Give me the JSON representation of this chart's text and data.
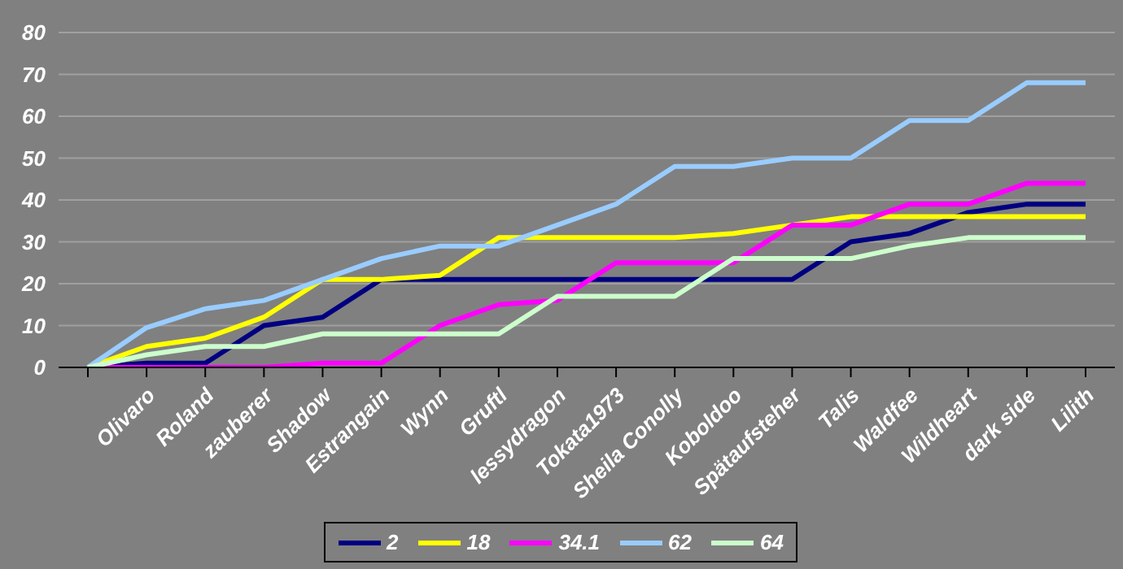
{
  "chart_data": {
    "type": "line",
    "categories": [
      null,
      "Olivaro",
      "Roland",
      "zauberer",
      "Shadow",
      "Estrangain",
      "Wynn",
      "Gruftl",
      "lessydragon",
      "Tokata1973",
      "Sheila Conolly",
      "Koboldoo",
      "Spätaufsteher",
      "Talis",
      "Waldfee",
      "Wildheart",
      "dark side",
      "Lilith"
    ],
    "series": [
      {
        "name": "2",
        "color": "#000080",
        "values": [
          0,
          1,
          1,
          10,
          12,
          21,
          21,
          21,
          21,
          21,
          21,
          21,
          21,
          30,
          32,
          37,
          39,
          39
        ]
      },
      {
        "name": "18",
        "color": "#ffff00",
        "values": [
          0,
          5,
          7,
          12,
          21,
          21,
          22,
          31,
          31,
          31,
          31,
          32,
          34,
          36,
          36,
          36,
          36,
          36
        ]
      },
      {
        "name": "34.1",
        "color": "#ff00ff",
        "values": [
          0,
          0,
          0,
          0,
          1,
          1,
          10,
          15,
          16,
          25,
          25,
          25,
          34,
          34,
          39,
          39,
          44,
          44
        ]
      },
      {
        "name": "62",
        "color": "#99ccff",
        "values": [
          0,
          9.5,
          14,
          16,
          21,
          26,
          29,
          29,
          34,
          39,
          48,
          48,
          50,
          50,
          59,
          59,
          68,
          68
        ]
      },
      {
        "name": "64",
        "color": "#ccffcc",
        "values": [
          0,
          3,
          5,
          5,
          8,
          8,
          8,
          8,
          17,
          17,
          17,
          26,
          26,
          26,
          29,
          31,
          31,
          31
        ]
      }
    ],
    "ylim": [
      0,
      80
    ],
    "yticks": [
      0,
      10,
      20,
      30,
      40,
      50,
      60,
      70,
      80
    ],
    "grid": "y",
    "legend": "bottom",
    "marker": "none",
    "line_style": "solid"
  }
}
